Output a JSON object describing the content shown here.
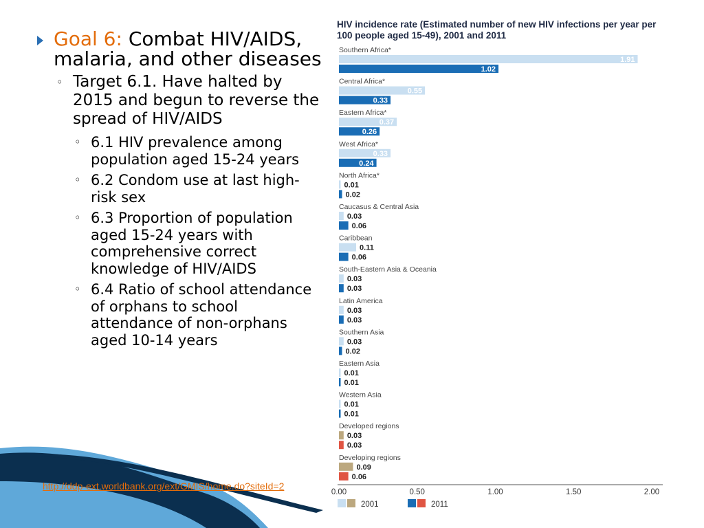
{
  "slide": {
    "goal_label": "Goal 6:",
    "goal_title": "Combat HIV/AIDS, malaria, and other diseases",
    "target_label": "Target 6.1.",
    "target_text": "Have halted by 2015 and begun to reverse the spread of HIV/AIDS",
    "indicators": [
      "6.1 HIV prevalence among population aged 15-24 years",
      "6.2 Condom use at last high-risk sex",
      "6.3 Proportion of population aged 15-24 years with comprehensive correct knowledge of HIV/AIDS",
      "6.4 Ratio of school attendance of orphans to school attendance of non-orphans aged 10-14 years"
    ],
    "source_link": "http://ddp-ext.worldbank.org/ext/GMIS/home.do?siteId=2"
  },
  "colors": {
    "goal_orange": "#e36c0a",
    "bullet_blue": "#2a6fb4",
    "bar_2001": "#c9dff1",
    "bar_2011": "#1a6db5",
    "bar_2001_highlight": "#bca87f",
    "bar_2011_highlight": "#e05543",
    "swoosh_dark": "#0b2f4f",
    "swoosh_light": "#5fa8d9"
  },
  "chart_data": {
    "type": "bar",
    "orientation": "horizontal",
    "title": "HIV incidence rate (Estimated number of new HIV infections per year per 100 people aged 15-49), 2001 and 2011",
    "categories": [
      "Southern Africa*",
      "Central Africa*",
      "Eastern Africa*",
      "West Africa*",
      "North Africa*",
      "Caucasus & Central Asia",
      "Caribbean",
      "South-Eastern Asia & Oceania",
      "Latin America",
      "Southern Asia",
      "Eastern Asia",
      "Western Asia",
      "Developed regions",
      "Developing regions"
    ],
    "series": [
      {
        "name": "2001",
        "values": [
          1.91,
          0.55,
          0.37,
          0.33,
          0.01,
          0.03,
          0.11,
          0.03,
          0.03,
          0.03,
          0.01,
          0.01,
          0.03,
          0.09
        ]
      },
      {
        "name": "2011",
        "values": [
          1.02,
          0.33,
          0.26,
          0.24,
          0.02,
          0.06,
          0.06,
          0.03,
          0.03,
          0.02,
          0.01,
          0.01,
          0.03,
          0.06
        ]
      }
    ],
    "highlighted_categories": [
      "Developed regions",
      "Developing regions"
    ],
    "xlim": [
      0,
      2
    ],
    "xticks": [
      "0.00",
      "0.50",
      "1.00",
      "1.50",
      "2.00"
    ],
    "xtick_values": [
      0,
      0.5,
      1,
      1.5,
      2
    ],
    "grid": false,
    "legend": [
      "2001",
      "2011"
    ],
    "legend_position": "bottom-left"
  }
}
